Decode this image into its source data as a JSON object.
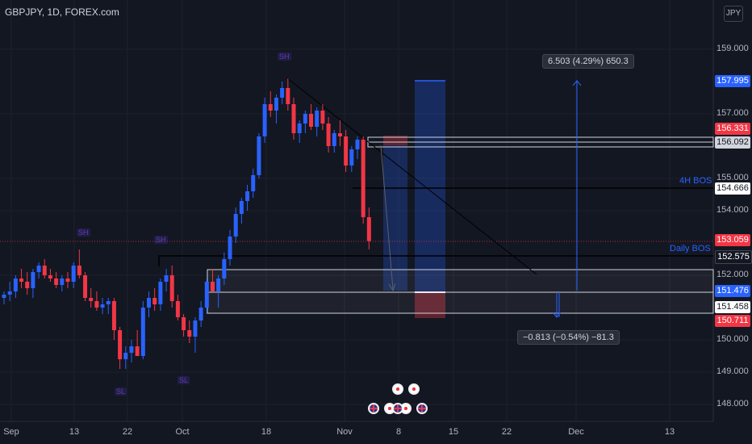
{
  "header": {
    "symbol_title": "GBPJPY, 1D, FOREX.com",
    "currency": "JPY"
  },
  "price_axis": {
    "ticks": [
      "159.000",
      "157.000",
      "155.000",
      "154.000",
      "152.000",
      "150.000",
      "149.000",
      "148.000"
    ]
  },
  "price_badges": [
    {
      "id": "target",
      "value": "157.995",
      "bg": "#2962ff",
      "fg": "#ffffff"
    },
    {
      "id": "r1",
      "value": "156.331",
      "bg": "#f23645",
      "fg": "#ffffff"
    },
    {
      "id": "r2",
      "value": "156.092",
      "bg": "#d1d4dc",
      "fg": "#131722"
    },
    {
      "id": "bos4h",
      "value": "154.666",
      "bg": "#ffffff",
      "fg": "#131722"
    },
    {
      "id": "last",
      "value": "153.059",
      "bg": "#f23645",
      "fg": "#ffffff"
    },
    {
      "id": "bosd",
      "value": "152.575",
      "bg": "#131722",
      "fg": "#ffffff"
    },
    {
      "id": "z1",
      "value": "151.476",
      "bg": "#2962ff",
      "fg": "#ffffff"
    },
    {
      "id": "z2",
      "value": "151.458",
      "bg": "#ffffff",
      "fg": "#131722"
    },
    {
      "id": "stop",
      "value": "150.711",
      "bg": "#f23645",
      "fg": "#ffffff"
    }
  ],
  "time_axis": {
    "labels": [
      "Sep",
      "13",
      "22",
      "Oct",
      "18",
      "Nov",
      "8",
      "15",
      "22",
      "Dec",
      "13"
    ]
  },
  "annotations": {
    "bos_4h": "4H BOS",
    "bos_daily": "Daily BOS",
    "measure_up": "6.503 (4.29%) 650.3",
    "measure_down": "−0.813 (−0.54%) −81.3",
    "sh1": "SH",
    "sh2": "SH",
    "sh3": "SH",
    "sl1": "SL",
    "sl2": "SL"
  },
  "colors": {
    "bg": "#131722",
    "bull": "#2962ff",
    "bear": "#f23645",
    "grid": "#1e222d"
  },
  "chart_data": {
    "type": "candlestick",
    "title": "GBPJPY, 1D, FOREX.com",
    "ylim": [
      147.6,
      159.9
    ],
    "candles": [
      [
        151.3,
        151.5,
        151.1,
        151.4
      ],
      [
        151.4,
        151.8,
        151.2,
        151.5
      ],
      [
        151.5,
        152.0,
        151.3,
        151.9
      ],
      [
        151.9,
        152.2,
        151.6,
        151.8
      ],
      [
        151.8,
        152.1,
        151.4,
        151.6
      ],
      [
        151.6,
        152.2,
        151.3,
        152.1
      ],
      [
        152.1,
        152.4,
        151.9,
        152.3
      ],
      [
        152.3,
        152.5,
        151.9,
        152.0
      ],
      [
        152.0,
        152.2,
        151.8,
        151.9
      ],
      [
        151.9,
        152.1,
        151.6,
        151.7
      ],
      [
        151.7,
        152.0,
        151.5,
        151.9
      ],
      [
        151.9,
        152.1,
        151.6,
        151.8
      ],
      [
        151.8,
        152.4,
        151.6,
        152.3
      ],
      [
        152.3,
        152.8,
        151.9,
        152.0
      ],
      [
        152.0,
        152.1,
        151.2,
        151.3
      ],
      [
        151.3,
        151.6,
        151.0,
        151.2
      ],
      [
        151.2,
        151.5,
        150.9,
        151.0
      ],
      [
        151.0,
        151.3,
        150.8,
        151.1
      ],
      [
        151.1,
        151.3,
        150.8,
        151.2
      ],
      [
        151.2,
        151.3,
        150.0,
        150.3
      ],
      [
        150.3,
        150.4,
        149.1,
        149.4
      ],
      [
        149.4,
        149.8,
        149.1,
        149.6
      ],
      [
        149.6,
        150.0,
        149.3,
        149.8
      ],
      [
        149.8,
        150.3,
        149.5,
        149.5
      ],
      [
        149.5,
        151.2,
        149.4,
        151.0
      ],
      [
        151.0,
        151.5,
        150.7,
        151.3
      ],
      [
        151.3,
        151.6,
        150.9,
        151.1
      ],
      [
        151.1,
        151.9,
        150.9,
        151.8
      ],
      [
        151.8,
        152.2,
        151.5,
        152.0
      ],
      [
        152.0,
        152.3,
        151.0,
        151.2
      ],
      [
        151.2,
        151.4,
        150.6,
        150.7
      ],
      [
        150.7,
        150.8,
        150.1,
        150.3
      ],
      [
        150.3,
        150.6,
        149.9,
        150.1
      ],
      [
        150.1,
        150.7,
        149.6,
        150.6
      ],
      [
        150.6,
        151.2,
        150.4,
        151.0
      ],
      [
        151.0,
        151.9,
        150.8,
        151.8
      ],
      [
        151.8,
        152.2,
        151.5,
        151.5
      ],
      [
        151.5,
        152.0,
        151.0,
        151.9
      ],
      [
        151.9,
        152.7,
        151.7,
        152.5
      ],
      [
        152.5,
        153.4,
        152.3,
        153.2
      ],
      [
        153.2,
        154.1,
        153.0,
        153.9
      ],
      [
        153.9,
        154.4,
        153.6,
        154.3
      ],
      [
        154.3,
        154.8,
        154.0,
        154.6
      ],
      [
        154.6,
        155.3,
        154.4,
        155.1
      ],
      [
        155.1,
        156.4,
        155.0,
        156.3
      ],
      [
        156.3,
        157.5,
        156.1,
        157.3
      ],
      [
        157.3,
        157.7,
        156.9,
        157.1
      ],
      [
        157.1,
        157.6,
        156.7,
        157.5
      ],
      [
        157.5,
        158.0,
        157.3,
        157.8
      ],
      [
        157.8,
        158.1,
        157.1,
        157.3
      ],
      [
        157.3,
        157.5,
        156.2,
        156.4
      ],
      [
        156.4,
        156.8,
        156.1,
        156.7
      ],
      [
        156.7,
        157.1,
        156.4,
        157.0
      ],
      [
        157.0,
        157.3,
        156.5,
        156.6
      ],
      [
        156.6,
        157.2,
        156.3,
        157.1
      ],
      [
        157.1,
        157.3,
        156.5,
        156.7
      ],
      [
        156.7,
        156.9,
        155.8,
        156.0
      ],
      [
        156.0,
        156.5,
        155.8,
        156.4
      ],
      [
        156.4,
        156.8,
        156.0,
        156.3
      ],
      [
        156.3,
        156.5,
        155.2,
        155.4
      ],
      [
        155.4,
        156.0,
        155.2,
        155.9
      ],
      [
        155.9,
        156.3,
        155.6,
        156.2
      ],
      [
        156.2,
        156.3,
        153.6,
        153.8
      ],
      [
        153.8,
        154.1,
        152.8,
        153.06
      ]
    ]
  }
}
